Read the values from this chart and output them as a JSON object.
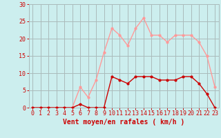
{
  "hours": [
    0,
    1,
    2,
    3,
    4,
    5,
    6,
    7,
    8,
    9,
    10,
    11,
    12,
    13,
    14,
    15,
    16,
    17,
    18,
    19,
    20,
    21,
    22,
    23
  ],
  "wind_avg": [
    0,
    0,
    0,
    0,
    0,
    0,
    1,
    0,
    0,
    0,
    9,
    8,
    7,
    9,
    9,
    9,
    8,
    8,
    8,
    9,
    9,
    7,
    4,
    0
  ],
  "wind_gust": [
    0,
    0,
    0,
    0,
    0,
    0,
    6,
    3,
    8,
    16,
    23,
    21,
    18,
    23,
    26,
    21,
    21,
    19,
    21,
    21,
    21,
    19,
    15,
    6
  ],
  "avg_color": "#cc0000",
  "gust_color": "#ff9999",
  "bg_color": "#cceeee",
  "grid_color": "#aabbbb",
  "xlabel": "Vent moyen/en rafales ( km/h )",
  "ylim": [
    0,
    30
  ],
  "yticks": [
    0,
    5,
    10,
    15,
    20,
    25,
    30
  ],
  "tick_color": "#cc0000",
  "xlabel_fontsize": 7,
  "tick_fontsize": 6
}
